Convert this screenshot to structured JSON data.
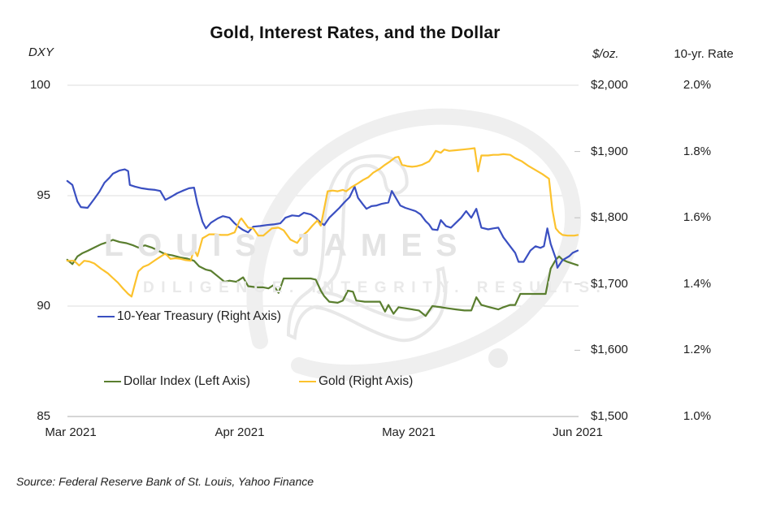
{
  "title": "Gold, Interest Rates, and the Dollar",
  "source_note": "Source: Federal Reserve Bank of St. Louis, Yahoo Finance",
  "watermark": {
    "line1": "LOUIS JAMES",
    "line2": "DILIGENCE. INTEGRITY. RESULTS."
  },
  "chart_data": {
    "type": "line",
    "title": "Gold, Interest Rates, and the Dollar",
    "x_axis": {
      "unit": "months since Mar 1 2021",
      "tick_positions": [
        0,
        1,
        2,
        3
      ],
      "tick_labels": [
        "Mar 2021",
        "Apr 2021",
        "May 2021",
        "Jun 2021"
      ],
      "domain": [
        -0.02,
        3.02
      ]
    },
    "left_axis": {
      "header": "DXY",
      "tick_values": [
        100,
        95,
        90,
        85
      ],
      "range": [
        85,
        100
      ],
      "gridlines": true
    },
    "right_axis_gold": {
      "header": "$/oz.",
      "tick_values": [
        2000,
        1900,
        1800,
        1700,
        1600,
        1500
      ],
      "tick_labels": [
        "$2,000",
        "$1,900",
        "$1,800",
        "$1,700",
        "$1,600",
        "$1,500"
      ],
      "range": [
        1500,
        2000
      ]
    },
    "right_axis_rate": {
      "header": "10-yr. Rate",
      "tick_values": [
        2.0,
        1.8,
        1.6,
        1.4,
        1.2,
        1.0
      ],
      "tick_labels": [
        "2.0%",
        "1.8%",
        "1.6%",
        "1.4%",
        "1.2%",
        "1.0%"
      ],
      "range": [
        1.0,
        2.0
      ]
    },
    "legend_position": "inside-plot-lower-left",
    "series": [
      {
        "name": "10-Year Treasury (Right Axis)",
        "axis": "rate",
        "unit": "%",
        "color": "#3a4fc1",
        "points": [
          [
            -0.02,
            1.711
          ],
          [
            0.01,
            1.699
          ],
          [
            0.04,
            1.649
          ],
          [
            0.06,
            1.632
          ],
          [
            0.1,
            1.63
          ],
          [
            0.14,
            1.657
          ],
          [
            0.17,
            1.679
          ],
          [
            0.2,
            1.706
          ],
          [
            0.23,
            1.721
          ],
          [
            0.25,
            1.733
          ],
          [
            0.29,
            1.743
          ],
          [
            0.32,
            1.746
          ],
          [
            0.34,
            1.741
          ],
          [
            0.35,
            1.699
          ],
          [
            0.38,
            1.694
          ],
          [
            0.42,
            1.689
          ],
          [
            0.46,
            1.686
          ],
          [
            0.5,
            1.684
          ],
          [
            0.53,
            1.681
          ],
          [
            0.56,
            1.654
          ],
          [
            0.59,
            1.662
          ],
          [
            0.63,
            1.674
          ],
          [
            0.66,
            1.681
          ],
          [
            0.7,
            1.689
          ],
          [
            0.73,
            1.691
          ],
          [
            0.75,
            1.642
          ],
          [
            0.78,
            1.588
          ],
          [
            0.8,
            1.568
          ],
          [
            0.83,
            1.585
          ],
          [
            0.87,
            1.598
          ],
          [
            0.9,
            1.605
          ],
          [
            0.94,
            1.6
          ],
          [
            0.97,
            1.583
          ],
          [
            1.0,
            1.57
          ],
          [
            1.02,
            1.563
          ],
          [
            1.05,
            1.556
          ],
          [
            1.08,
            1.573
          ],
          [
            1.12,
            1.575
          ],
          [
            1.16,
            1.578
          ],
          [
            1.2,
            1.58
          ],
          [
            1.24,
            1.583
          ],
          [
            1.27,
            1.6
          ],
          [
            1.31,
            1.607
          ],
          [
            1.35,
            1.605
          ],
          [
            1.38,
            1.615
          ],
          [
            1.42,
            1.61
          ],
          [
            1.45,
            1.6
          ],
          [
            1.48,
            1.585
          ],
          [
            1.5,
            1.578
          ],
          [
            1.53,
            1.6
          ],
          [
            1.56,
            1.615
          ],
          [
            1.59,
            1.63
          ],
          [
            1.62,
            1.647
          ],
          [
            1.65,
            1.662
          ],
          [
            1.68,
            1.694
          ],
          [
            1.7,
            1.66
          ],
          [
            1.73,
            1.64
          ],
          [
            1.75,
            1.627
          ],
          [
            1.78,
            1.635
          ],
          [
            1.81,
            1.637
          ],
          [
            1.84,
            1.642
          ],
          [
            1.88,
            1.646
          ],
          [
            1.9,
            1.681
          ],
          [
            1.95,
            1.637
          ],
          [
            1.98,
            1.63
          ],
          [
            2.01,
            1.625
          ],
          [
            2.04,
            1.62
          ],
          [
            2.07,
            1.61
          ],
          [
            2.1,
            1.59
          ],
          [
            2.12,
            1.58
          ],
          [
            2.14,
            1.565
          ],
          [
            2.17,
            1.563
          ],
          [
            2.19,
            1.593
          ],
          [
            2.22,
            1.575
          ],
          [
            2.25,
            1.57
          ],
          [
            2.28,
            1.585
          ],
          [
            2.31,
            1.6
          ],
          [
            2.34,
            1.62
          ],
          [
            2.37,
            1.6
          ],
          [
            2.4,
            1.627
          ],
          [
            2.43,
            1.57
          ],
          [
            2.47,
            1.565
          ],
          [
            2.5,
            1.568
          ],
          [
            2.53,
            1.57
          ],
          [
            2.56,
            1.541
          ],
          [
            2.6,
            1.514
          ],
          [
            2.63,
            1.494
          ],
          [
            2.65,
            1.467
          ],
          [
            2.68,
            1.467
          ],
          [
            2.72,
            1.501
          ],
          [
            2.75,
            1.514
          ],
          [
            2.78,
            1.509
          ],
          [
            2.8,
            1.514
          ],
          [
            2.82,
            1.568
          ],
          [
            2.84,
            1.521
          ],
          [
            2.87,
            1.477
          ],
          [
            2.88,
            1.449
          ],
          [
            2.91,
            1.472
          ],
          [
            2.95,
            1.484
          ],
          [
            2.97,
            1.494
          ],
          [
            3.0,
            1.501
          ]
        ]
      },
      {
        "name": "Dollar Index (Left Axis)",
        "axis": "dxy",
        "unit": "index",
        "color": "#5a7e2f",
        "points": [
          [
            -0.02,
            92.1
          ],
          [
            0.01,
            91.9
          ],
          [
            0.04,
            92.25
          ],
          [
            0.07,
            92.4
          ],
          [
            0.1,
            92.5
          ],
          [
            0.14,
            92.65
          ],
          [
            0.18,
            92.8
          ],
          [
            0.22,
            92.9
          ],
          [
            0.25,
            93.0
          ],
          [
            0.29,
            92.9
          ],
          [
            0.33,
            92.85
          ],
          [
            0.37,
            92.75
          ],
          [
            0.4,
            92.65
          ],
          [
            0.44,
            92.75
          ],
          [
            0.48,
            92.65
          ],
          [
            0.52,
            92.5
          ],
          [
            0.56,
            92.35
          ],
          [
            0.6,
            92.3
          ],
          [
            0.65,
            92.2
          ],
          [
            0.69,
            92.15
          ],
          [
            0.73,
            92.05
          ],
          [
            0.76,
            91.8
          ],
          [
            0.8,
            91.65
          ],
          [
            0.83,
            91.6
          ],
          [
            0.87,
            91.35
          ],
          [
            0.91,
            91.1
          ],
          [
            0.94,
            91.15
          ],
          [
            0.98,
            91.1
          ],
          [
            1.02,
            91.3
          ],
          [
            1.05,
            90.9
          ],
          [
            1.1,
            90.85
          ],
          [
            1.14,
            90.85
          ],
          [
            1.17,
            90.8
          ],
          [
            1.2,
            90.95
          ],
          [
            1.23,
            90.6
          ],
          [
            1.26,
            91.25
          ],
          [
            1.31,
            91.25
          ],
          [
            1.36,
            91.25
          ],
          [
            1.42,
            91.25
          ],
          [
            1.45,
            91.2
          ],
          [
            1.48,
            90.7
          ],
          [
            1.5,
            90.45
          ],
          [
            1.53,
            90.2
          ],
          [
            1.58,
            90.15
          ],
          [
            1.61,
            90.25
          ],
          [
            1.64,
            90.7
          ],
          [
            1.67,
            90.65
          ],
          [
            1.69,
            90.25
          ],
          [
            1.74,
            90.2
          ],
          [
            1.79,
            90.2
          ],
          [
            1.83,
            90.2
          ],
          [
            1.86,
            89.75
          ],
          [
            1.88,
            90.05
          ],
          [
            1.91,
            89.65
          ],
          [
            1.94,
            89.95
          ],
          [
            1.98,
            89.9
          ],
          [
            2.02,
            89.85
          ],
          [
            2.06,
            89.8
          ],
          [
            2.1,
            89.55
          ],
          [
            2.14,
            90.0
          ],
          [
            2.19,
            89.95
          ],
          [
            2.23,
            89.9
          ],
          [
            2.28,
            89.85
          ],
          [
            2.33,
            89.8
          ],
          [
            2.37,
            89.8
          ],
          [
            2.4,
            90.4
          ],
          [
            2.43,
            90.05
          ],
          [
            2.48,
            89.95
          ],
          [
            2.53,
            89.85
          ],
          [
            2.56,
            89.95
          ],
          [
            2.6,
            90.05
          ],
          [
            2.63,
            90.05
          ],
          [
            2.66,
            90.55
          ],
          [
            2.71,
            90.55
          ],
          [
            2.76,
            90.55
          ],
          [
            2.81,
            90.55
          ],
          [
            2.84,
            91.7
          ],
          [
            2.87,
            92.1
          ],
          [
            2.89,
            92.25
          ],
          [
            2.91,
            92.1
          ],
          [
            2.94,
            92.0
          ],
          [
            2.98,
            91.9
          ],
          [
            3.0,
            91.85
          ]
        ]
      },
      {
        "name": "Gold (Right Axis)",
        "axis": "usd",
        "unit": "$/oz.",
        "color": "#fcc22d",
        "points": [
          [
            -0.02,
            1735
          ],
          [
            0.02,
            1735
          ],
          [
            0.05,
            1728
          ],
          [
            0.08,
            1735
          ],
          [
            0.11,
            1734
          ],
          [
            0.14,
            1731
          ],
          [
            0.18,
            1723
          ],
          [
            0.22,
            1716
          ],
          [
            0.25,
            1709
          ],
          [
            0.28,
            1702
          ],
          [
            0.31,
            1693
          ],
          [
            0.34,
            1685
          ],
          [
            0.36,
            1681
          ],
          [
            0.38,
            1700
          ],
          [
            0.4,
            1719
          ],
          [
            0.43,
            1726
          ],
          [
            0.46,
            1729
          ],
          [
            0.5,
            1736
          ],
          [
            0.53,
            1741
          ],
          [
            0.56,
            1746
          ],
          [
            0.59,
            1738
          ],
          [
            0.62,
            1739
          ],
          [
            0.65,
            1738
          ],
          [
            0.68,
            1736
          ],
          [
            0.71,
            1735
          ],
          [
            0.73,
            1753
          ],
          [
            0.75,
            1742
          ],
          [
            0.78,
            1769
          ],
          [
            0.82,
            1775
          ],
          [
            0.85,
            1775
          ],
          [
            0.89,
            1774
          ],
          [
            0.93,
            1774
          ],
          [
            0.97,
            1778
          ],
          [
            1.0,
            1796
          ],
          [
            1.01,
            1799
          ],
          [
            1.05,
            1785
          ],
          [
            1.08,
            1784
          ],
          [
            1.11,
            1773
          ],
          [
            1.14,
            1773
          ],
          [
            1.19,
            1784
          ],
          [
            1.23,
            1785
          ],
          [
            1.26,
            1781
          ],
          [
            1.3,
            1767
          ],
          [
            1.34,
            1762
          ],
          [
            1.37,
            1773
          ],
          [
            1.4,
            1779
          ],
          [
            1.43,
            1788
          ],
          [
            1.46,
            1796
          ],
          [
            1.48,
            1788
          ],
          [
            1.52,
            1840
          ],
          [
            1.55,
            1841
          ],
          [
            1.58,
            1840
          ],
          [
            1.61,
            1842
          ],
          [
            1.63,
            1840
          ],
          [
            1.66,
            1846
          ],
          [
            1.7,
            1852
          ],
          [
            1.73,
            1857
          ],
          [
            1.76,
            1861
          ],
          [
            1.79,
            1868
          ],
          [
            1.83,
            1874
          ],
          [
            1.86,
            1880
          ],
          [
            1.89,
            1885
          ],
          [
            1.92,
            1891
          ],
          [
            1.94,
            1892
          ],
          [
            1.96,
            1880
          ],
          [
            1.99,
            1878
          ],
          [
            2.02,
            1877
          ],
          [
            2.05,
            1878
          ],
          [
            2.08,
            1880
          ],
          [
            2.12,
            1885
          ],
          [
            2.14,
            1892
          ],
          [
            2.16,
            1901
          ],
          [
            2.19,
            1898
          ],
          [
            2.21,
            1903
          ],
          [
            2.24,
            1901
          ],
          [
            2.28,
            1902
          ],
          [
            2.32,
            1903
          ],
          [
            2.36,
            1904
          ],
          [
            2.39,
            1905
          ],
          [
            2.41,
            1870
          ],
          [
            2.43,
            1894
          ],
          [
            2.47,
            1894
          ],
          [
            2.5,
            1895
          ],
          [
            2.53,
            1895
          ],
          [
            2.56,
            1896
          ],
          [
            2.6,
            1895
          ],
          [
            2.63,
            1890
          ],
          [
            2.67,
            1885
          ],
          [
            2.71,
            1878
          ],
          [
            2.75,
            1872
          ],
          [
            2.79,
            1866
          ],
          [
            2.83,
            1859
          ],
          [
            2.85,
            1812
          ],
          [
            2.87,
            1784
          ],
          [
            2.89,
            1778
          ],
          [
            2.91,
            1774
          ],
          [
            2.94,
            1773
          ],
          [
            2.98,
            1773
          ],
          [
            3.0,
            1774
          ]
        ]
      }
    ]
  }
}
